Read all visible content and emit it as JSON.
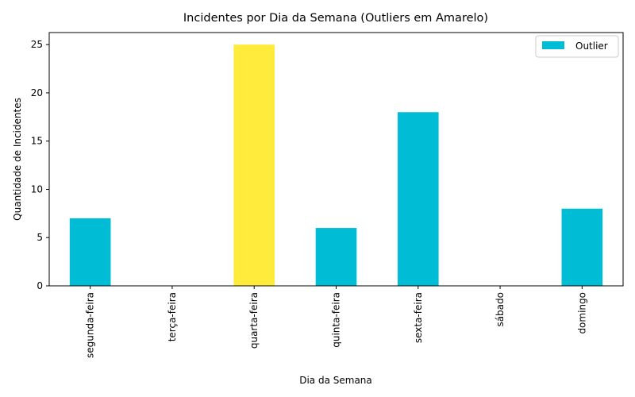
{
  "chart_data": {
    "type": "bar",
    "title": "Incidentes por Dia da Semana (Outliers em Amarelo)",
    "xlabel": "Dia da Semana",
    "ylabel": "Quantidade de Incidentes",
    "categories": [
      "segunda-feira",
      "terça-feira",
      "quarta-feira",
      "quinta-feira",
      "sexta-feira",
      "sábado",
      "domingo"
    ],
    "values": [
      7,
      0,
      25,
      6,
      18,
      0,
      8
    ],
    "outlier": [
      false,
      false,
      true,
      false,
      false,
      false,
      false
    ],
    "ylim": [
      0,
      26.25
    ],
    "yticks": [
      0,
      5,
      10,
      15,
      20,
      25
    ],
    "grid": false,
    "legend": {
      "position": "top-right",
      "entries": [
        "Outlier"
      ]
    },
    "colors": {
      "normal": "#00bcd4",
      "outlier": "#ffeb3b"
    }
  }
}
